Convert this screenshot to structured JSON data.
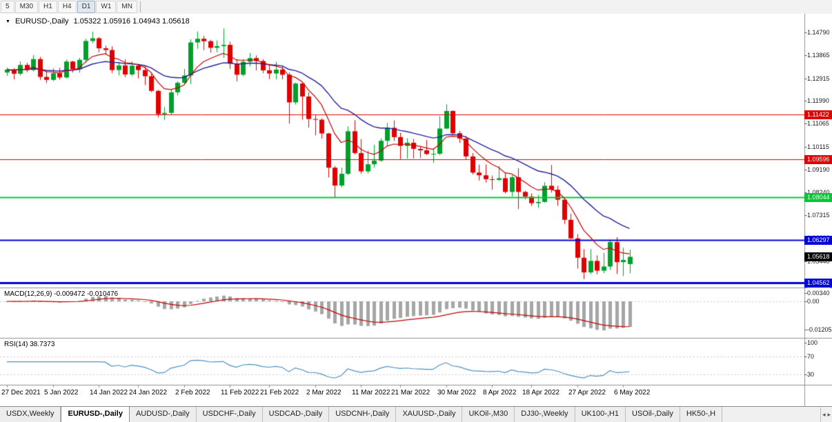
{
  "toolbar": {
    "timeframes": [
      "5",
      "M30",
      "H1",
      "H4",
      "D1",
      "W1",
      "MN"
    ],
    "active": "D1"
  },
  "chart_header": {
    "collapse_icon": "▼",
    "symbol": "EURUSD-,Daily",
    "ohlc": "1.05322 1.05916 1.04943 1.05618"
  },
  "chart_data": {
    "type": "candlestick",
    "title": "EURUSD-,Daily",
    "timeframe": "Daily",
    "last_candle": {
      "open": 1.05322,
      "high": 1.05916,
      "low": 1.04943,
      "close": 1.05618
    },
    "ylim": [
      1.0436,
      1.1556
    ],
    "up_color": "#00A02B",
    "down_color": "#E00000",
    "y_ticks": [
      "1.14790",
      "1.13865",
      "1.12915",
      "1.11990",
      "1.11065",
      "1.10115",
      "1.09190",
      "1.08240",
      "1.07315",
      "1.06390",
      "1.05440",
      "1.04515"
    ],
    "x_ticks": [
      {
        "label": "27 Dec 2021",
        "index": 0
      },
      {
        "label": "5 Jan 2022",
        "index": 7
      },
      {
        "label": "14 Jan 2022",
        "index": 14
      },
      {
        "label": "24 Jan 2022",
        "index": 20
      },
      {
        "label": "2 Feb 2022",
        "index": 27
      },
      {
        "label": "11 Feb 2022",
        "index": 34
      },
      {
        "label": "21 Feb 2022",
        "index": 40
      },
      {
        "label": "2 Mar 2022",
        "index": 47
      },
      {
        "label": "11 Mar 2022",
        "index": 54
      },
      {
        "label": "21 Mar 2022",
        "index": 60
      },
      {
        "label": "30 Mar 2022",
        "index": 67
      },
      {
        "label": "8 Apr 2022",
        "index": 74
      },
      {
        "label": "18 Apr 2022",
        "index": 80
      },
      {
        "label": "27 Apr 2022",
        "index": 87
      },
      {
        "label": "6 May 2022",
        "index": 94
      }
    ],
    "overlays": [
      {
        "name": "ma-slow",
        "type": "ema",
        "period": 21,
        "color": "#2020A0"
      },
      {
        "name": "ma-fast",
        "type": "ema",
        "period": 8,
        "color": "#CC0000"
      }
    ],
    "hlines": [
      {
        "price": 1.11422,
        "color": "#E00000",
        "width": 1
      },
      {
        "price": 1.09596,
        "color": "#E00000",
        "width": 1
      },
      {
        "price": 1.08044,
        "color": "#00C832",
        "width": 2
      },
      {
        "price": 1.06297,
        "color": "#0000D8",
        "width": 2
      },
      {
        "price": 1.04562,
        "color": "#0000D8",
        "width": 3
      }
    ],
    "candles": [
      [
        1.1315,
        1.1335,
        1.1301,
        1.1327
      ],
      [
        1.1327,
        1.1333,
        1.1287,
        1.131
      ],
      [
        1.131,
        1.136,
        1.1303,
        1.1346
      ],
      [
        1.1346,
        1.1355,
        1.1316,
        1.1325
      ],
      [
        1.1325,
        1.1386,
        1.132,
        1.137
      ],
      [
        1.137,
        1.1379,
        1.1285,
        1.1297
      ],
      [
        1.1297,
        1.1323,
        1.1272,
        1.1285
      ],
      [
        1.1285,
        1.1332,
        1.128,
        1.1312
      ],
      [
        1.1312,
        1.1334,
        1.1286,
        1.1295
      ],
      [
        1.1295,
        1.1368,
        1.129,
        1.136
      ],
      [
        1.136,
        1.1363,
        1.1315,
        1.1328
      ],
      [
        1.1328,
        1.1375,
        1.1314,
        1.1367
      ],
      [
        1.1367,
        1.1453,
        1.1355,
        1.1444
      ],
      [
        1.1444,
        1.1482,
        1.1435,
        1.1455
      ],
      [
        1.1455,
        1.146,
        1.1398,
        1.1414
      ],
      [
        1.1414,
        1.1425,
        1.1391,
        1.1407
      ],
      [
        1.1407,
        1.1422,
        1.1313,
        1.1325
      ],
      [
        1.1325,
        1.1357,
        1.1303,
        1.1344
      ],
      [
        1.1344,
        1.1369,
        1.1296,
        1.1307
      ],
      [
        1.1307,
        1.136,
        1.13,
        1.1343
      ],
      [
        1.1343,
        1.1349,
        1.1291,
        1.1325
      ],
      [
        1.1325,
        1.134,
        1.1264,
        1.13
      ],
      [
        1.13,
        1.131,
        1.1235,
        1.124
      ],
      [
        1.124,
        1.1244,
        1.1131,
        1.1145
      ],
      [
        1.1145,
        1.1174,
        1.1121,
        1.115
      ],
      [
        1.115,
        1.1248,
        1.1141,
        1.1234
      ],
      [
        1.1234,
        1.1279,
        1.1221,
        1.1273
      ],
      [
        1.1273,
        1.133,
        1.1266,
        1.1303
      ],
      [
        1.1303,
        1.1451,
        1.1267,
        1.1438
      ],
      [
        1.1438,
        1.1483,
        1.1412,
        1.1453
      ],
      [
        1.1453,
        1.1465,
        1.1407,
        1.1443
      ],
      [
        1.1443,
        1.1449,
        1.1396,
        1.1416
      ],
      [
        1.1416,
        1.1446,
        1.1398,
        1.1423
      ],
      [
        1.1423,
        1.1495,
        1.1375,
        1.1428
      ],
      [
        1.1428,
        1.1441,
        1.133,
        1.1351
      ],
      [
        1.1351,
        1.1369,
        1.1279,
        1.1306
      ],
      [
        1.1306,
        1.137,
        1.13,
        1.1359
      ],
      [
        1.1359,
        1.1395,
        1.134,
        1.1374
      ],
      [
        1.1374,
        1.1385,
        1.1324,
        1.1362
      ],
      [
        1.1362,
        1.137,
        1.1312,
        1.1324
      ],
      [
        1.1324,
        1.135,
        1.1288,
        1.1311
      ],
      [
        1.1311,
        1.1359,
        1.1287,
        1.1327
      ],
      [
        1.1327,
        1.1344,
        1.1287,
        1.1306
      ],
      [
        1.1306,
        1.1315,
        1.1106,
        1.1193
      ],
      [
        1.1193,
        1.1274,
        1.1184,
        1.127
      ],
      [
        1.127,
        1.1272,
        1.1122,
        1.1217
      ],
      [
        1.1217,
        1.1234,
        1.109,
        1.1125
      ],
      [
        1.1125,
        1.1143,
        1.1058,
        1.1122
      ],
      [
        1.1122,
        1.1128,
        1.1045,
        1.1066
      ],
      [
        1.1066,
        1.1068,
        1.0886,
        1.0926
      ],
      [
        1.0926,
        1.0933,
        1.0806,
        1.0853
      ],
      [
        1.0853,
        1.0926,
        1.0845,
        1.0901
      ],
      [
        1.0901,
        1.1095,
        1.0896,
        1.1075
      ],
      [
        1.1075,
        1.112,
        1.098,
        1.0986
      ],
      [
        1.0986,
        1.1043,
        1.0901,
        1.0911
      ],
      [
        1.0911,
        1.0996,
        1.0902,
        1.094
      ],
      [
        1.094,
        1.102,
        1.0926,
        1.0955
      ],
      [
        1.0955,
        1.1046,
        1.095,
        1.1036
      ],
      [
        1.1036,
        1.1109,
        1.1014,
        1.1089
      ],
      [
        1.1089,
        1.1119,
        1.1035,
        1.1051
      ],
      [
        1.1051,
        1.1069,
        1.0961,
        1.1015
      ],
      [
        1.1015,
        1.1047,
        1.0963,
        1.1028
      ],
      [
        1.1028,
        1.1044,
        1.0964,
        1.1003
      ],
      [
        1.1003,
        1.1014,
        1.0966,
        1.0997
      ],
      [
        1.0997,
        1.1039,
        1.0978,
        1.0982
      ],
      [
        1.0982,
        1.1003,
        1.0945,
        1.0983
      ],
      [
        1.0983,
        1.1137,
        1.0977,
        1.1086
      ],
      [
        1.1086,
        1.1185,
        1.1084,
        1.1158
      ],
      [
        1.1158,
        1.116,
        1.106,
        1.1067
      ],
      [
        1.1067,
        1.1076,
        1.1027,
        1.1045
      ],
      [
        1.1045,
        1.1055,
        1.096,
        1.0972
      ],
      [
        1.0972,
        1.0986,
        1.0898,
        1.0906
      ],
      [
        1.0906,
        1.0938,
        1.0874,
        1.0895
      ],
      [
        1.0895,
        1.0939,
        1.0865,
        1.0879
      ],
      [
        1.0879,
        1.0894,
        1.0836,
        1.0876
      ],
      [
        1.0876,
        1.0933,
        1.0872,
        1.0883
      ],
      [
        1.0883,
        1.0905,
        1.0821,
        1.0827
      ],
      [
        1.0827,
        1.0896,
        1.0809,
        1.0887
      ],
      [
        1.0887,
        1.0924,
        1.0757,
        1.0827
      ],
      [
        1.0827,
        1.0832,
        1.0797,
        1.0808
      ],
      [
        1.0808,
        1.0821,
        1.077,
        1.0781
      ],
      [
        1.0781,
        1.0815,
        1.0761,
        1.0786
      ],
      [
        1.0786,
        1.0867,
        1.0783,
        1.0852
      ],
      [
        1.0852,
        1.0937,
        1.0824,
        1.0836
      ],
      [
        1.0836,
        1.0852,
        1.077,
        1.0795
      ],
      [
        1.0795,
        1.0797,
        1.0696,
        1.0713
      ],
      [
        1.0713,
        1.0738,
        1.0635,
        1.0637
      ],
      [
        1.0637,
        1.0655,
        1.0514,
        1.0558
      ],
      [
        1.0558,
        1.0593,
        1.0471,
        1.0498
      ],
      [
        1.0498,
        1.0593,
        1.0491,
        1.0545
      ],
      [
        1.0545,
        1.0568,
        1.049,
        1.0505
      ],
      [
        1.0505,
        1.0578,
        1.0494,
        1.0522
      ],
      [
        1.0522,
        1.0632,
        1.0508,
        1.0622
      ],
      [
        1.0622,
        1.0642,
        1.0492,
        1.054
      ],
      [
        1.054,
        1.0599,
        1.0483,
        1.0549
      ],
      [
        1.05322,
        1.05916,
        1.04943,
        1.05618
      ]
    ]
  },
  "macd_pane": {
    "label": "MACD(12,26,9) -0.009472 -0.010476",
    "fast": 12,
    "slow": 26,
    "signal": 9,
    "main_value": -0.009472,
    "signal_value": -0.010476,
    "histogram_color": "#A6A6A6",
    "signal_color": "#C00000",
    "y_ticks": [
      {
        "text": "0.00340",
        "value": 0.0034
      },
      {
        "text": "0.00",
        "value": 0
      },
      {
        "text": "-0.01205",
        "value": -0.01205
      }
    ]
  },
  "rsi_pane": {
    "label": "RSI(14) 38.7373",
    "period": 14,
    "value": 38.7373,
    "line_color": "#4A90C2",
    "levels": [
      70,
      30
    ],
    "y_ticks": [
      {
        "text": "100",
        "value": 100
      },
      {
        "text": "70",
        "value": 70
      },
      {
        "text": "30",
        "value": 30
      }
    ]
  },
  "price_badges": [
    {
      "text": "1.11422",
      "price": 1.11422,
      "color": "#E00000"
    },
    {
      "text": "1.09596",
      "price": 1.09596,
      "color": "#E00000"
    },
    {
      "text": "1.08044",
      "price": 1.08044,
      "color": "#00C832"
    },
    {
      "text": "1.06297",
      "price": 1.06297,
      "color": "#0000D8"
    },
    {
      "text": "1.05618",
      "price": 1.05618,
      "color": "#000000"
    },
    {
      "text": "1.04562",
      "price": 1.04562,
      "color": "#0000D8"
    }
  ],
  "tabs": {
    "items": [
      {
        "label": "USDX,Weekly",
        "active": false
      },
      {
        "label": "EURUSD-,Daily",
        "active": true
      },
      {
        "label": "AUDUSD-,Daily",
        "active": false
      },
      {
        "label": "USDCHF-,Daily",
        "active": false
      },
      {
        "label": "USDCAD-,Daily",
        "active": false
      },
      {
        "label": "USDCNH-,Daily",
        "active": false
      },
      {
        "label": "XAUUSD-,Daily",
        "active": false
      },
      {
        "label": "UKOil-,M30",
        "active": false
      },
      {
        "label": "DJ30-,Weekly",
        "active": false
      },
      {
        "label": "UK100-,H1",
        "active": false
      },
      {
        "label": "USOil-,Daily",
        "active": false
      },
      {
        "label": "HK50-,H",
        "active": false
      }
    ],
    "scroll_left": "◂",
    "scroll_right": "▸"
  }
}
